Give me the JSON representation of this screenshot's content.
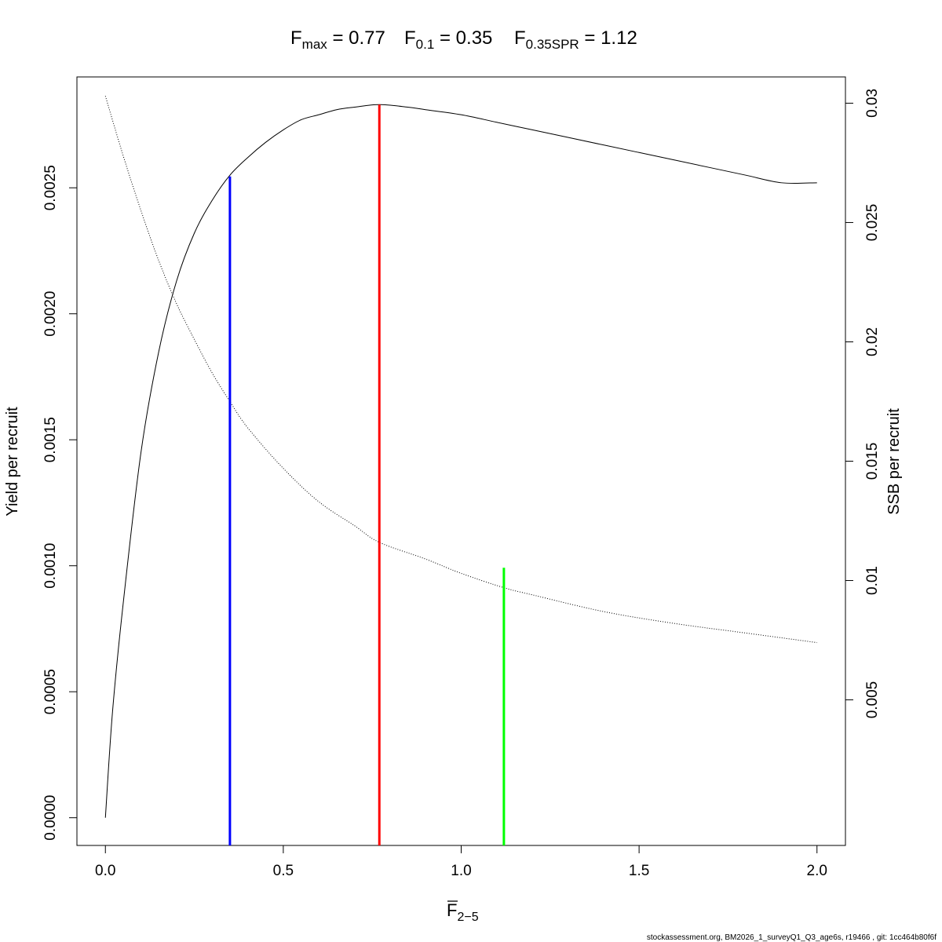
{
  "chart_data": {
    "type": "line",
    "title": {
      "fmax": {
        "base": "F",
        "sub": "max",
        "value": "0.77"
      },
      "f01": {
        "base": "F",
        "sub": "0.1",
        "value": "0.35"
      },
      "fspr": {
        "base": "F",
        "sub": "0.35SPR",
        "value": "1.12"
      }
    },
    "xlabel": {
      "base": "F",
      "sub": "2−5"
    },
    "ylabel_left": "Yield per recruit",
    "ylabel_right": "SSB per recruit",
    "xlim": [
      -0.08,
      2.08
    ],
    "ylim_left": [
      -0.00011,
      0.00294
    ],
    "ylim_right": [
      -0.0011,
      0.0311
    ],
    "x_ticks": [
      {
        "v": 0.0,
        "label": "0.0"
      },
      {
        "v": 0.5,
        "label": "0.5"
      },
      {
        "v": 1.0,
        "label": "1.0"
      },
      {
        "v": 1.5,
        "label": "1.5"
      },
      {
        "v": 2.0,
        "label": "2.0"
      }
    ],
    "y_left_ticks": [
      {
        "v": 0.0,
        "label": "0.0000"
      },
      {
        "v": 0.0005,
        "label": "0.0005"
      },
      {
        "v": 0.001,
        "label": "0.0010"
      },
      {
        "v": 0.0015,
        "label": "0.0015"
      },
      {
        "v": 0.002,
        "label": "0.0020"
      },
      {
        "v": 0.0025,
        "label": "0.0025"
      }
    ],
    "y_right_ticks": [
      {
        "v": 0.005,
        "label": "0.005"
      },
      {
        "v": 0.01,
        "label": "0.01"
      },
      {
        "v": 0.015,
        "label": "0.015"
      },
      {
        "v": 0.02,
        "label": "0.02"
      },
      {
        "v": 0.025,
        "label": "0.025"
      },
      {
        "v": 0.03,
        "label": "0.03"
      }
    ],
    "series": [
      {
        "axis": "left",
        "style": "solid",
        "color": "#000000",
        "x": [
          0,
          0.02,
          0.05,
          0.1,
          0.15,
          0.2,
          0.25,
          0.3,
          0.35,
          0.4,
          0.45,
          0.5,
          0.55,
          0.6,
          0.65,
          0.7,
          0.77,
          0.85,
          0.9,
          1.0,
          1.1,
          1.2,
          1.3,
          1.4,
          1.5,
          1.6,
          1.7,
          1.8,
          1.9,
          2.0
        ],
        "values": [
          0,
          0.00042,
          0.00085,
          0.00145,
          0.00185,
          0.00213,
          0.00232,
          0.00245,
          0.00255,
          0.00262,
          0.00268,
          0.00273,
          0.00277,
          0.00279,
          0.00281,
          0.00282,
          0.00283,
          0.00282,
          0.00281,
          0.00279,
          0.00276,
          0.00273,
          0.0027,
          0.00267,
          0.00264,
          0.00261,
          0.00258,
          0.00255,
          0.00252,
          0.00252
        ]
      },
      {
        "axis": "right",
        "style": "dotted",
        "color": "#000000",
        "x": [
          0,
          0.05,
          0.1,
          0.15,
          0.2,
          0.25,
          0.3,
          0.35,
          0.4,
          0.5,
          0.6,
          0.7,
          0.77,
          0.9,
          1.0,
          1.12,
          1.2,
          1.4,
          1.6,
          1.8,
          2.0
        ],
        "values": [
          0.0303,
          0.0278,
          0.0255,
          0.0234,
          0.0216,
          0.0201,
          0.0187,
          0.0175,
          0.0164,
          0.0147,
          0.0133,
          0.0123,
          0.0116,
          0.0109,
          0.0103,
          0.0097,
          0.0094,
          0.0087,
          0.0082,
          0.0078,
          0.0074
        ]
      }
    ],
    "vlines": [
      {
        "name": "f01-line",
        "x": 0.35,
        "y_top": 0.002545,
        "color": "#0000ff"
      },
      {
        "name": "fmax-line",
        "x": 0.77,
        "y_top": 0.00283,
        "color": "#ff0000"
      },
      {
        "name": "fspr-line",
        "x": 1.12,
        "y_top": 0.000992,
        "color": "#00ff00"
      }
    ]
  },
  "footer": "stockassessment.org, BM2026_1_surveyQ1_Q3_age6s, r19466 , git: 1cc464b80f6f"
}
